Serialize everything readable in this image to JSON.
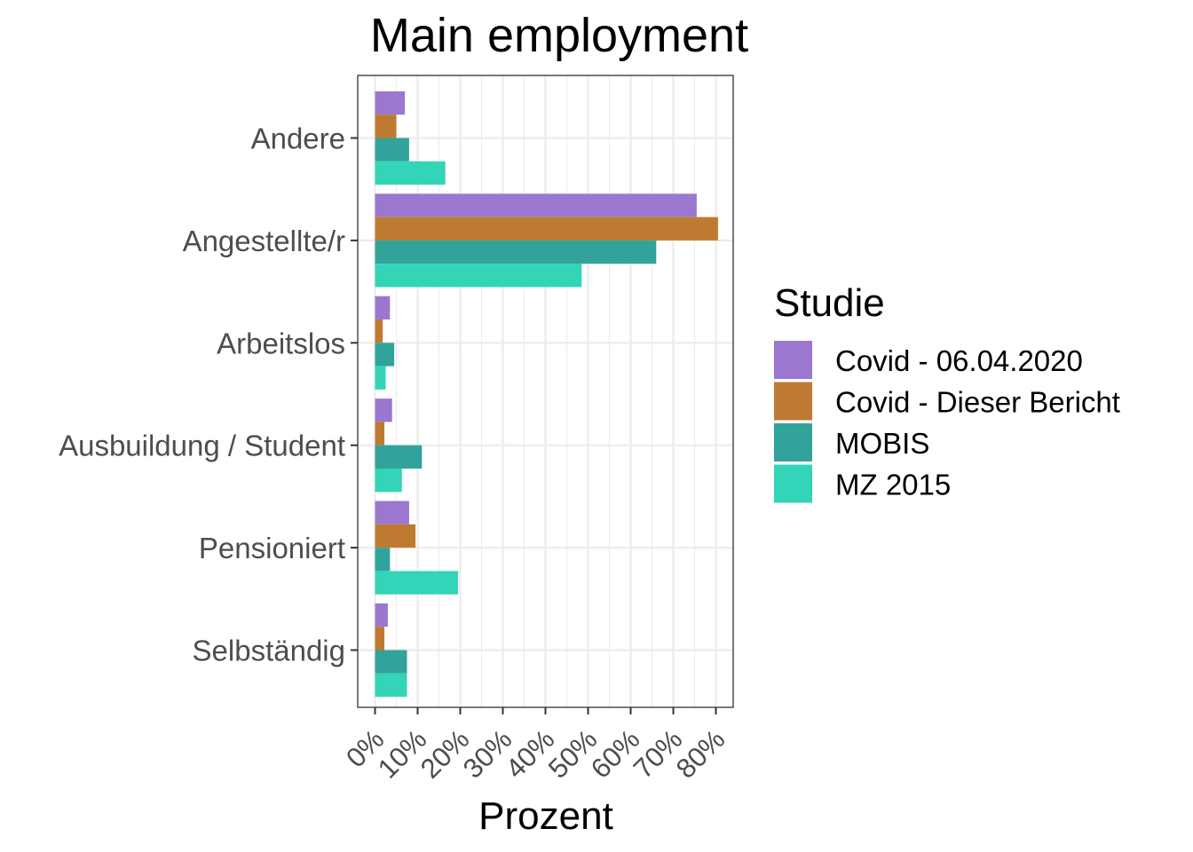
{
  "chart_data": {
    "type": "bar",
    "orientation": "horizontal",
    "title": "Main employment",
    "xlabel": "Prozent",
    "ylabel": "",
    "xlim": [
      0,
      84
    ],
    "x_ticks": [
      "0%",
      "10%",
      "20%",
      "30%",
      "40%",
      "50%",
      "60%",
      "70%",
      "80%"
    ],
    "x_tick_values": [
      0,
      10,
      20,
      30,
      40,
      50,
      60,
      70,
      80
    ],
    "grid": true,
    "legend_position": "right",
    "legend_title": "Studie",
    "categories": [
      "Andere",
      "Angestellte/r",
      "Arbeitslos",
      "Ausbuildung / Student",
      "Pensioniert",
      "Selbständig"
    ],
    "series": [
      {
        "name": "Covid - 06.04.2020",
        "color": "#9b77cf",
        "values": [
          7,
          75.5,
          3.5,
          4,
          8,
          3
        ]
      },
      {
        "name": "Covid - Dieser Bericht",
        "color": "#bf7a31",
        "values": [
          5,
          80.5,
          1.8,
          2.2,
          9.5,
          2.2
        ]
      },
      {
        "name": "MOBIS",
        "color": "#31a39b",
        "values": [
          8,
          66,
          4.5,
          11,
          3.5,
          7.5
        ]
      },
      {
        "name": "MZ 2015",
        "color": "#33d4b8",
        "values": [
          16.5,
          48.5,
          2.5,
          6.3,
          19.5,
          7.5
        ]
      }
    ]
  }
}
